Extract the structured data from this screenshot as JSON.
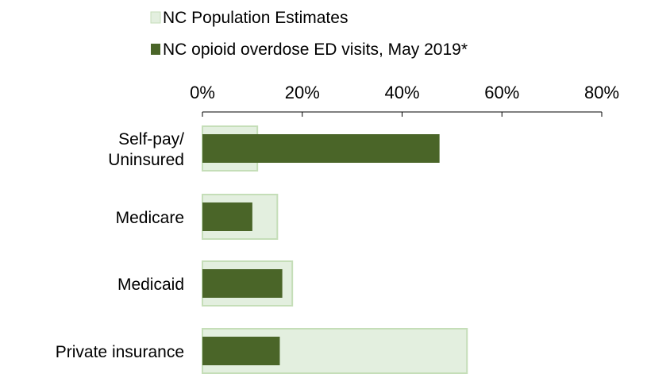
{
  "chart_data": {
    "type": "bar",
    "orientation": "horizontal",
    "categories": [
      [
        "Self-pay/",
        "Uninsured"
      ],
      [
        "Medicare"
      ],
      [
        "Medicaid"
      ],
      [
        "Private insurance"
      ]
    ],
    "series": [
      {
        "name": "NC Population Estimates",
        "values": [
          11,
          15,
          18,
          53
        ],
        "color": "#e3efdf",
        "stroke": "#c5deb8"
      },
      {
        "name": "NC opioid overdose ED visits, May 2019*",
        "values": [
          47.5,
          10,
          16,
          15.5
        ],
        "color": "#4a6528"
      }
    ],
    "xlim": [
      0,
      80
    ],
    "xticks": [
      0,
      20,
      40,
      60,
      80
    ],
    "xtick_labels": [
      "0%",
      "20%",
      "40%",
      "60%",
      "80%"
    ],
    "axis_position": "top",
    "legend_position": "top",
    "grid": false,
    "title": "",
    "xlabel": "",
    "ylabel": ""
  }
}
